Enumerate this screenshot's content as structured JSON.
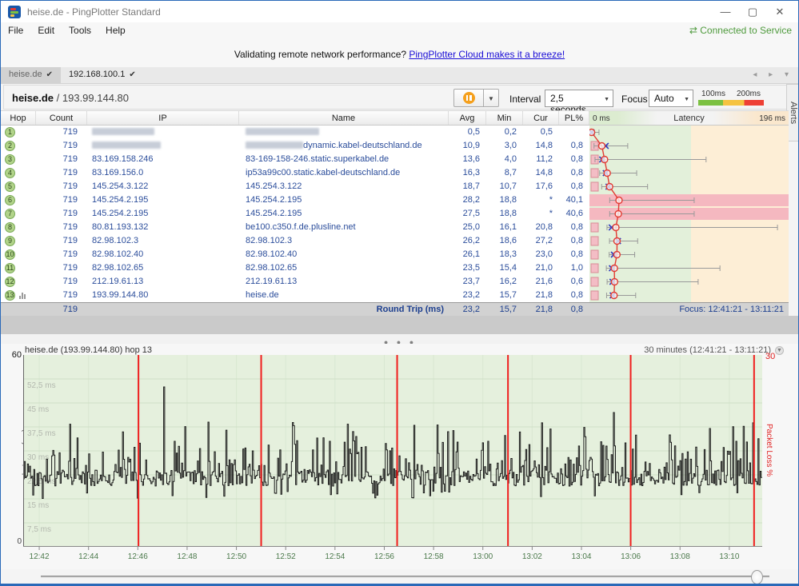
{
  "window": {
    "title": "heise.de - PingPlotter Standard",
    "minimize": "—",
    "maximize": "▢",
    "close": "✕"
  },
  "menu": {
    "items": [
      "File",
      "Edit",
      "Tools",
      "Help"
    ],
    "connection_icon": "⇄",
    "connection_status": "Connected to Service"
  },
  "banner": {
    "text": "Validating remote network performance? ",
    "link": "PingPlotter Cloud makes it a breeze!"
  },
  "tabs": [
    {
      "label": "heise.de",
      "check": "✔",
      "active": true
    },
    {
      "label": "192.168.100.1",
      "check": "✔",
      "active": false
    }
  ],
  "tab_arrows": "◂ ▸ ▾",
  "target_bar": {
    "host": "heise.de",
    "separator": " / ",
    "ip": "193.99.144.80",
    "interval_label": "Interval",
    "interval_value": "2,5 seconds",
    "focus_label": "Focus",
    "focus_value": "Auto",
    "legend": {
      "labels": [
        "100ms",
        "200ms"
      ],
      "colors": [
        "#7cc142",
        "#f5c342",
        "#ee4035"
      ]
    }
  },
  "alerts_tab_label": "Alerts",
  "table": {
    "columns": [
      "Hop",
      "Count",
      "IP",
      "Name",
      "Avg",
      "Min",
      "Cur",
      "PL%"
    ],
    "latency_header": {
      "title": "Latency",
      "min_label": "0 ms",
      "max_label": "196 ms",
      "scale_max_ms": 196,
      "green_zone_ms": 100
    },
    "hops": [
      {
        "hop": 1,
        "count": "719",
        "ip": "",
        "ip_redacted": true,
        "name": "",
        "name_redacted": true,
        "avg": "0,5",
        "min": "0,2",
        "cur": "0,5",
        "pl": "",
        "avg_ms": 0.5,
        "min_ms": 0.2,
        "cur_ms": 0.5,
        "max_ms": 8,
        "loss_band": false,
        "pl_box": false
      },
      {
        "hop": 2,
        "count": "719",
        "ip": "",
        "ip_redacted": true,
        "name": "dynamic.kabel-deutschland.de",
        "name_redacted_prefix": true,
        "avg": "10,9",
        "min": "3,0",
        "cur": "14,8",
        "pl": "0,8",
        "avg_ms": 10.9,
        "min_ms": 3.0,
        "cur_ms": 14.8,
        "max_ms": 37,
        "loss_band": false,
        "pl_box": true
      },
      {
        "hop": 3,
        "count": "719",
        "ip": "83.169.158.246",
        "name": "83-169-158-246.static.superkabel.de",
        "avg": "13,6",
        "min": "4,0",
        "cur": "11,2",
        "pl": "0,8",
        "avg_ms": 13.6,
        "min_ms": 4.0,
        "cur_ms": 11.2,
        "max_ms": 116,
        "loss_band": false,
        "pl_box": true
      },
      {
        "hop": 4,
        "count": "719",
        "ip": "83.169.156.0",
        "name": "ip53a99c00.static.kabel-deutschland.de",
        "avg": "16,3",
        "min": "8,7",
        "cur": "14,8",
        "pl": "0,8",
        "avg_ms": 16.3,
        "min_ms": 8.7,
        "cur_ms": 14.8,
        "max_ms": 46,
        "loss_band": false,
        "pl_box": true
      },
      {
        "hop": 5,
        "count": "719",
        "ip": "145.254.3.122",
        "name": "145.254.3.122",
        "avg": "18,7",
        "min": "10,7",
        "cur": "17,6",
        "pl": "0,8",
        "avg_ms": 18.7,
        "min_ms": 10.7,
        "cur_ms": 17.6,
        "max_ms": 57,
        "loss_band": false,
        "pl_box": true
      },
      {
        "hop": 6,
        "count": "719",
        "ip": "145.254.2.195",
        "name": "145.254.2.195",
        "avg": "28,2",
        "min": "18,8",
        "cur": "*",
        "pl": "40,1",
        "avg_ms": 28.2,
        "min_ms": 18.8,
        "cur_ms": null,
        "max_ms": 104,
        "loss_band": true,
        "pl_box": false
      },
      {
        "hop": 7,
        "count": "719",
        "ip": "145.254.2.195",
        "name": "145.254.2.195",
        "avg": "27,5",
        "min": "18,8",
        "cur": "*",
        "pl": "40,6",
        "avg_ms": 27.5,
        "min_ms": 18.8,
        "cur_ms": null,
        "max_ms": 104,
        "loss_band": true,
        "pl_box": false
      },
      {
        "hop": 8,
        "count": "719",
        "ip": "80.81.193.132",
        "name": "be100.c350.f.de.plusline.net",
        "avg": "25,0",
        "min": "16,1",
        "cur": "20,8",
        "pl": "0,8",
        "avg_ms": 25.0,
        "min_ms": 16.1,
        "cur_ms": 20.8,
        "max_ms": 188,
        "loss_band": false,
        "pl_box": true
      },
      {
        "hop": 9,
        "count": "719",
        "ip": "82.98.102.3",
        "name": "82.98.102.3",
        "avg": "26,2",
        "min": "18,6",
        "cur": "27,2",
        "pl": "0,8",
        "avg_ms": 26.2,
        "min_ms": 18.6,
        "cur_ms": 27.2,
        "max_ms": 47,
        "loss_band": false,
        "pl_box": true
      },
      {
        "hop": 10,
        "count": "719",
        "ip": "82.98.102.40",
        "name": "82.98.102.40",
        "avg": "26,1",
        "min": "18,3",
        "cur": "23,0",
        "pl": "0,8",
        "avg_ms": 26.1,
        "min_ms": 18.3,
        "cur_ms": 23.0,
        "max_ms": 44,
        "loss_band": false,
        "pl_box": true
      },
      {
        "hop": 11,
        "count": "719",
        "ip": "82.98.102.65",
        "name": "82.98.102.65",
        "avg": "23,5",
        "min": "15,4",
        "cur": "21,0",
        "pl": "1,0",
        "avg_ms": 23.5,
        "min_ms": 15.4,
        "cur_ms": 21.0,
        "max_ms": 130,
        "loss_band": false,
        "pl_box": true
      },
      {
        "hop": 12,
        "count": "719",
        "ip": "212.19.61.13",
        "name": "212.19.61.13",
        "avg": "23,7",
        "min": "16,2",
        "cur": "21,6",
        "pl": "0,6",
        "avg_ms": 23.7,
        "min_ms": 16.2,
        "cur_ms": 21.6,
        "max_ms": 108,
        "loss_band": false,
        "pl_box": true
      },
      {
        "hop": 13,
        "count": "719",
        "ip": "193.99.144.80",
        "name": "heise.de",
        "avg": "23,2",
        "min": "15,7",
        "cur": "21,8",
        "pl": "0,8",
        "avg_ms": 23.2,
        "min_ms": 15.7,
        "cur_ms": 21.8,
        "max_ms": 45,
        "loss_band": false,
        "pl_box": true,
        "chart_icon": true
      }
    ],
    "footer": {
      "count": "719",
      "label": "Round Trip (ms)",
      "avg": "23,2",
      "min": "15,7",
      "cur": "21,8",
      "pl": "0,8",
      "focus": "Focus: 12:41:21 - 13:11:21"
    }
  },
  "splitter_dots": "● ● ●",
  "timeline": {
    "title": "heise.de (193.99.144.80) hop 13",
    "range_label": "30 minutes (12:41:21 - 13:11:21)",
    "chevron": "▼",
    "y_axis_label": "Latency (ms)",
    "y_max_label": "60",
    "y_min_label": "0",
    "y_max_ms": 60,
    "right_axis_label": "Packet Loss %",
    "right_max_label": "30",
    "gridline_labels": [
      "52,5 ms",
      "45 ms",
      "37,5 ms",
      "30 ms",
      "22,5 ms",
      "15 ms",
      "7,5 ms"
    ],
    "gridline_values": [
      52.5,
      45,
      37.5,
      30,
      22.5,
      15,
      7.5
    ],
    "x_labels": [
      "12:42",
      "12:44",
      "12:46",
      "12:48",
      "12:50",
      "12:52",
      "12:54",
      "12:56",
      "12:58",
      "13:00",
      "13:02",
      "13:04",
      "13:06",
      "13:08",
      "13:10"
    ],
    "x_first_label_fraction": 0.0217,
    "x_label_spacing_fraction": 0.0667,
    "loss_event_fractions": [
      0.156,
      0.322,
      0.506,
      0.656,
      0.822,
      0.989
    ],
    "trace": {
      "baseline_ms": 22,
      "n_points": 700,
      "seed": 42,
      "feature_spikes": [
        {
          "f": 0.19,
          "ms": 50
        },
        {
          "f": 0.205,
          "ms": 33
        },
        {
          "f": 0.25,
          "ms": 39
        },
        {
          "f": 0.31,
          "ms": 30
        },
        {
          "f": 0.415,
          "ms": 33
        },
        {
          "f": 0.53,
          "ms": 38
        },
        {
          "f": 0.575,
          "ms": 36
        },
        {
          "f": 0.63,
          "ms": 33
        },
        {
          "f": 0.71,
          "ms": 31
        },
        {
          "f": 0.8,
          "ms": 42
        },
        {
          "f": 0.875,
          "ms": 35
        },
        {
          "f": 0.93,
          "ms": 37
        },
        {
          "f": 0.965,
          "ms": 33
        }
      ]
    },
    "colors": {
      "plot_bg": "#e5f0dd",
      "grid": "#cfe0c6",
      "trace": "#1a1a1a",
      "loss_line": "#f01e1e",
      "x_label": "#4c7a4c"
    }
  }
}
